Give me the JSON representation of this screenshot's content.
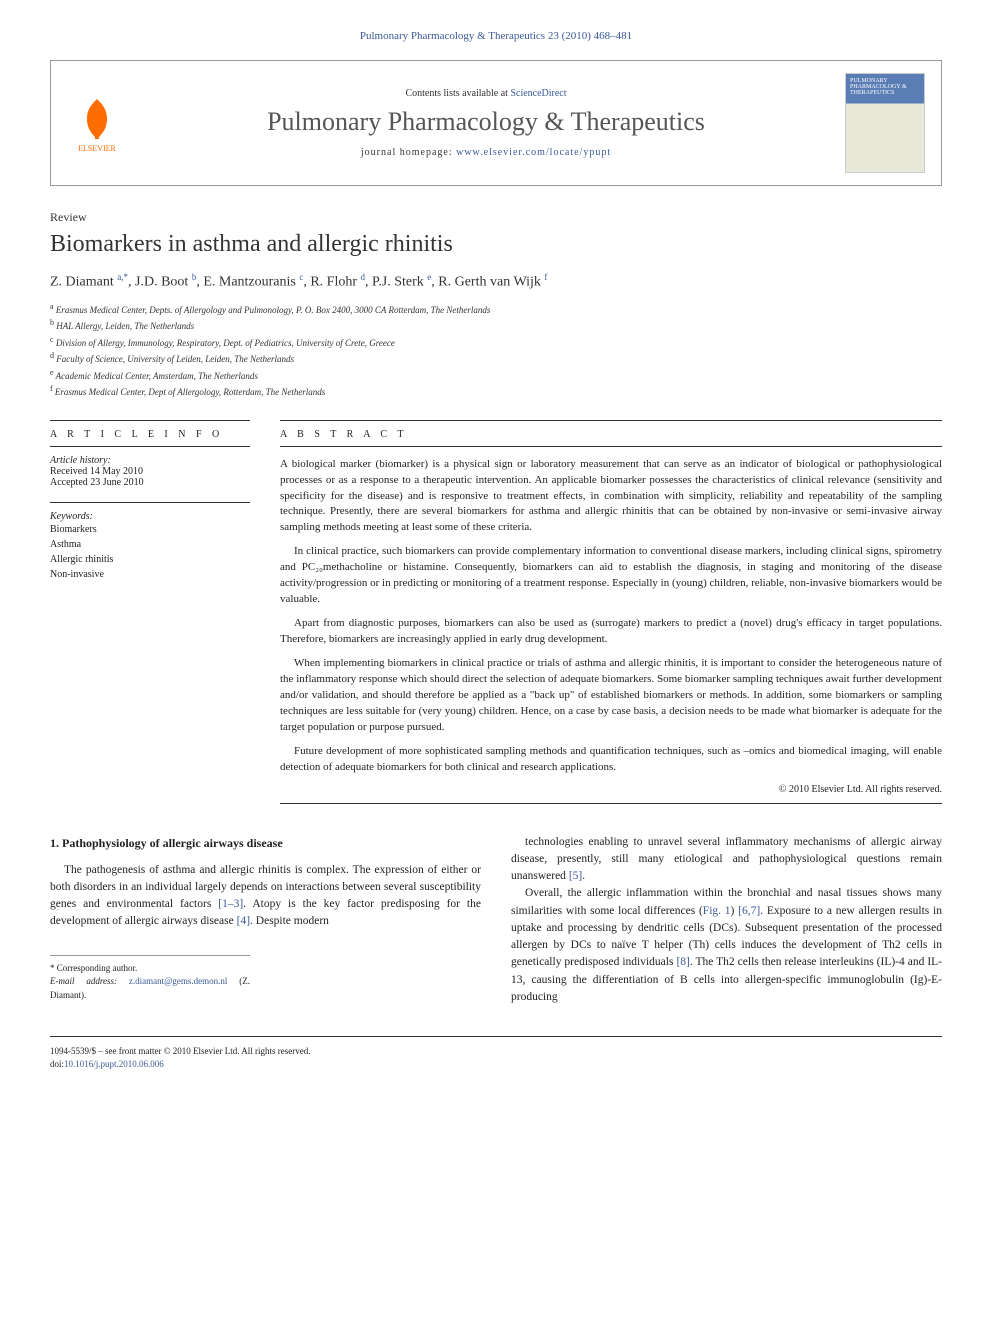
{
  "journal_ref": "Pulmonary Pharmacology & Therapeutics 23 (2010) 468–481",
  "header": {
    "contents_prefix": "Contents lists available at ",
    "contents_link": "ScienceDirect",
    "journal_name": "Pulmonary Pharmacology & Therapeutics",
    "homepage_prefix": "journal homepage: ",
    "homepage_url": "www.elsevier.com/locate/ypupt",
    "publisher": "ELSEVIER",
    "cover_text": "PULMONARY PHARMACOLOGY & THERAPEUTICS"
  },
  "article_type": "Review",
  "title": "Biomarkers in asthma and allergic rhinitis",
  "authors_html": "Z. Diamant <sup>a,*</sup>, J.D. Boot <sup>b</sup>, E. Mantzouranis <sup>c</sup>, R. Flohr <sup>d</sup>, P.J. Sterk <sup>e</sup>, R. Gerth van Wijk <sup>f</sup>",
  "affiliations": [
    {
      "sup": "a",
      "text": "Erasmus Medical Center, Depts. of Allergology and Pulmonology, P. O. Box 2400, 3000 CA Rotterdam, The Netherlands"
    },
    {
      "sup": "b",
      "text": "HAL Allergy, Leiden, The Netherlands"
    },
    {
      "sup": "c",
      "text": "Division of Allergy, Immunology, Respiratory, Dept. of Pediatrics, University of Crete, Greece"
    },
    {
      "sup": "d",
      "text": "Faculty of Science, University of Leiden, Leiden, The Netherlands"
    },
    {
      "sup": "e",
      "text": "Academic Medical Center, Amsterdam, The Netherlands"
    },
    {
      "sup": "f",
      "text": "Erasmus Medical Center, Dept of Allergology, Rotterdam, The Netherlands"
    }
  ],
  "info": {
    "heading": "A R T I C L E   I N F O",
    "history_label": "Article history:",
    "received": "Received 14 May 2010",
    "accepted": "Accepted 23 June 2010",
    "keywords_label": "Keywords:",
    "keywords": [
      "Biomarkers",
      "Asthma",
      "Allergic rhinitis",
      "Non-invasive"
    ]
  },
  "abstract": {
    "heading": "A B S T R A C T",
    "paragraphs": [
      "A biological marker (biomarker) is a physical sign or laboratory measurement that can serve as an indicator of biological or pathophysiological processes or as a response to a therapeutic intervention. An applicable biomarker possesses the characteristics of clinical relevance (sensitivity and specificity for the disease) and is responsive to treatment effects, in combination with simplicity, reliability and repeatability of the sampling technique. Presently, there are several biomarkers for asthma and allergic rhinitis that can be obtained by non-invasive or semi-invasive airway sampling methods meeting at least some of these criteria.",
      "In clinical practice, such biomarkers can provide complementary information to conventional disease markers, including clinical signs, spirometry and PC₂₀methacholine or histamine. Consequently, biomarkers can aid to establish the diagnosis, in staging and monitoring of the disease activity/progression or in predicting or monitoring of a treatment response. Especially in (young) children, reliable, non-invasive biomarkers would be valuable.",
      "Apart from diagnostic purposes, biomarkers can also be used as (surrogate) markers to predict a (novel) drug's efficacy in target populations. Therefore, biomarkers are increasingly applied in early drug development.",
      "When implementing biomarkers in clinical practice or trials of asthma and allergic rhinitis, it is important to consider the heterogeneous nature of the inflammatory response which should direct the selection of adequate biomarkers. Some biomarker sampling techniques await further development and/or validation, and should therefore be applied as a \"back up\" of established biomarkers or methods. In addition, some biomarkers or sampling techniques are less suitable for (very young) children. Hence, on a case by case basis, a decision needs to be made what biomarker is adequate for the target population or purpose pursued.",
      "Future development of more sophisticated sampling methods and quantification techniques, such as –omics and biomedical imaging, will enable detection of adequate biomarkers for both clinical and research applications."
    ],
    "copyright": "© 2010 Elsevier Ltd. All rights reserved."
  },
  "body": {
    "section_title": "1. Pathophysiology of allergic airways disease",
    "col1_p1": "The pathogenesis of asthma and allergic rhinitis is complex. The expression of either or both disorders in an individual largely depends on interactions between several susceptibility genes and environmental factors [1–3]. Atopy is the key factor predisposing for the development of allergic airways disease [4]. Despite modern",
    "col2_p1": "technologies enabling to unravel several inflammatory mechanisms of allergic airway disease, presently, still many etiological and pathophysiological questions remain unanswered [5].",
    "col2_p2": "Overall, the allergic inflammation within the bronchial and nasal tissues shows many similarities with some local differences (Fig. 1) [6,7]. Exposure to a new allergen results in uptake and processing by dendritic cells (DCs). Subsequent presentation of the processed allergen by DCs to naïve T helper (Th) cells induces the development of Th2 cells in genetically predisposed individuals [8]. The Th2 cells then release interleukins (IL)-4 and IL-13, causing the differentiation of B cells into allergen-specific immunoglobulin (Ig)-E-producing",
    "refs": {
      "r1_3": "[1–3]",
      "r4": "[4]",
      "r5": "[5]",
      "fig1": "Fig. 1",
      "r6_7": "[6,7]",
      "r8": "[8]"
    }
  },
  "corr": {
    "label": "* Corresponding author.",
    "email_label": "E-mail address: ",
    "email": "z.diamant@gems.demon.nl",
    "email_who": " (Z. Diamant)."
  },
  "footer": {
    "issn": "1094-5539/$ – see front matter © 2010 Elsevier Ltd. All rights reserved.",
    "doi_label": "doi:",
    "doi": "10.1016/j.pupt.2010.06.006"
  },
  "colors": {
    "link": "#3b5998",
    "elsevier": "#ff6c00",
    "text": "#222222",
    "border": "#333333"
  }
}
